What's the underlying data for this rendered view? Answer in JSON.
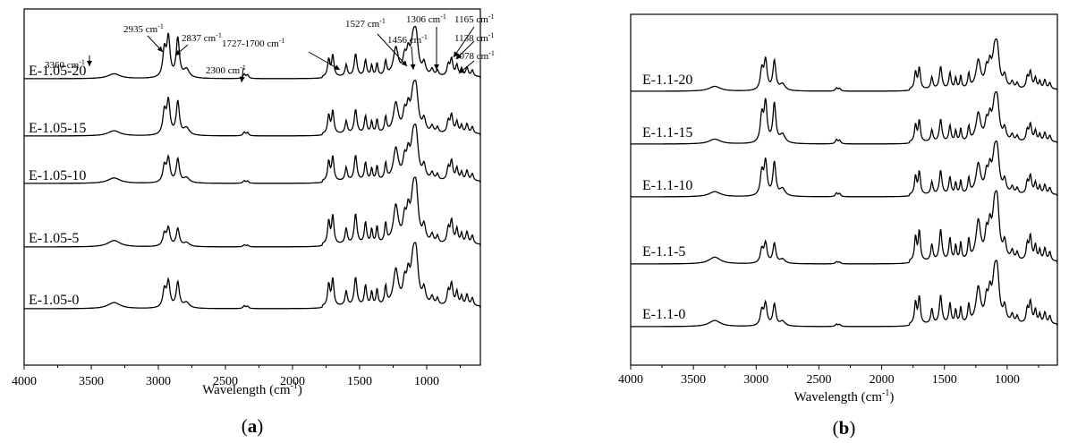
{
  "chart_data": [
    {
      "panel": "(a)",
      "panel_letter": "a",
      "type": "line",
      "xlabel": "Wavelength (cm",
      "xlabel_sup": "-1",
      "xlabel_end": ")",
      "xlim": [
        4000,
        600
      ],
      "xticks": [
        4000,
        3500,
        3000,
        2500,
        2000,
        1500,
        1000
      ],
      "series": [
        {
          "name": "E-1.05-20",
          "peak_scale": 1.0,
          "broad_scale": 0.75
        },
        {
          "name": "E-1.05-15",
          "peak_scale": 0.85,
          "broad_scale": 0.8
        },
        {
          "name": "E-1.05-10",
          "peak_scale": 0.6,
          "broad_scale": 0.85
        },
        {
          "name": "E-1.05-5",
          "peak_scale": 0.45,
          "broad_scale": 1.0
        },
        {
          "name": "E-1.05-0",
          "peak_scale": 0.65,
          "broad_scale": 0.95
        }
      ],
      "annotations": [
        {
          "label": "3360 cm",
          "sup": "-1",
          "x": 3330
        },
        {
          "label": "2935 cm",
          "sup": "-1",
          "x": 2925
        },
        {
          "label": "2837 cm",
          "sup": "-1",
          "x": 2855
        },
        {
          "label": "2300 cm",
          "sup": "-1",
          "x": 2355
        },
        {
          "label": "1727-1700 cm",
          "sup": "-1",
          "x": 1715
        },
        {
          "label": "1527 cm",
          "sup": "-1",
          "x": 1530
        },
        {
          "label": "1456 cm",
          "sup": "-1",
          "x": 1456
        },
        {
          "label": "1306 cm",
          "sup": "-1",
          "x": 1306
        },
        {
          "label": "1165 cm",
          "sup": "-1",
          "x": 1165
        },
        {
          "label": "1138 cm",
          "sup": "-1",
          "x": 1138
        },
        {
          "label": "1078 cm",
          "sup": "-1",
          "x": 1078
        }
      ]
    },
    {
      "panel": "(b)",
      "panel_letter": "b",
      "type": "line",
      "xlabel": "Wavelength (cm",
      "xlabel_sup": "-1",
      "xlabel_end": ")",
      "xlim": [
        4000,
        600
      ],
      "xticks": [
        4000,
        3500,
        3000,
        2500,
        2000,
        1500,
        1000
      ],
      "series": [
        {
          "name": "E-1.1-20",
          "peak_scale": 0.75,
          "broad_scale": 0.75
        },
        {
          "name": "E-1.1-15",
          "peak_scale": 1.0,
          "broad_scale": 0.75
        },
        {
          "name": "E-1.1-10",
          "peak_scale": 0.85,
          "broad_scale": 0.8
        },
        {
          "name": "E-1.1-5",
          "peak_scale": 0.5,
          "broad_scale": 1.05
        },
        {
          "name": "E-1.1-0",
          "peak_scale": 0.55,
          "broad_scale": 0.95
        }
      ],
      "annotations": []
    }
  ]
}
